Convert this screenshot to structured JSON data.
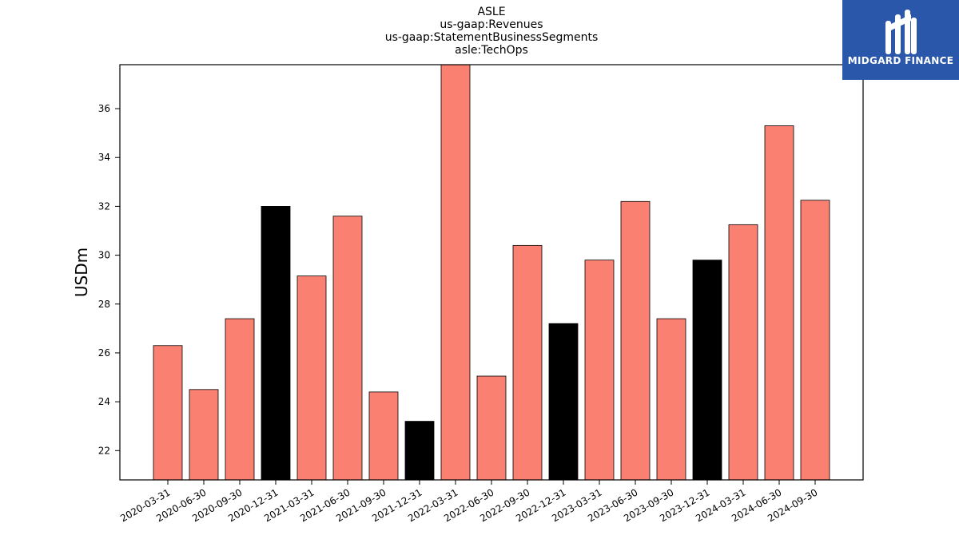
{
  "chart_data": {
    "type": "bar",
    "title_lines": [
      "ASLE",
      "us-gaap:Revenues",
      "us-gaap:StatementBusinessSegments",
      "asle:TechOps"
    ],
    "ylabel": "USDm",
    "xlabel": "",
    "ylim": [
      20.8,
      37.8
    ],
    "yticks": [
      22,
      24,
      26,
      28,
      30,
      32,
      34,
      36
    ],
    "grid": false,
    "categories": [
      "2020-03-31",
      "2020-06-30",
      "2020-09-30",
      "2020-12-31",
      "2021-03-31",
      "2021-06-30",
      "2021-09-30",
      "2021-12-31",
      "2022-03-31",
      "2022-06-30",
      "2022-09-30",
      "2022-12-31",
      "2023-03-31",
      "2023-06-30",
      "2023-09-30",
      "2023-12-31",
      "2024-03-31",
      "2024-06-30",
      "2024-09-30"
    ],
    "values": [
      26.3,
      24.5,
      27.4,
      32.0,
      29.15,
      31.6,
      24.4,
      23.2,
      38.5,
      25.05,
      30.4,
      27.2,
      29.8,
      32.2,
      27.4,
      29.8,
      31.25,
      35.3,
      32.25
    ],
    "bar_colors": [
      "#fa8072",
      "#fa8072",
      "#fa8072",
      "#000000",
      "#fa8072",
      "#fa8072",
      "#fa8072",
      "#000000",
      "#fa8072",
      "#fa8072",
      "#fa8072",
      "#000000",
      "#fa8072",
      "#fa8072",
      "#fa8072",
      "#000000",
      "#fa8072",
      "#fa8072",
      "#fa8072"
    ]
  },
  "logo": {
    "text": "MIDGARD FINANCE",
    "background": "#2b57ab",
    "foreground": "#ffffff"
  }
}
